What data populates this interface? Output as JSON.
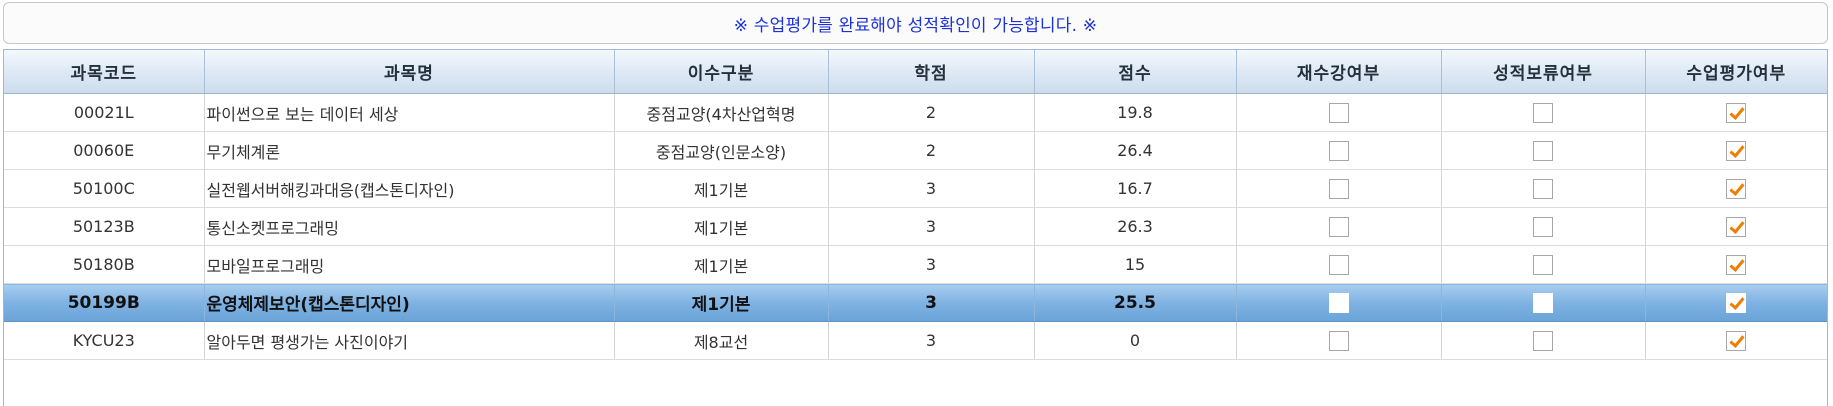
{
  "notice": "※ 수업평가를 완료해야 성적확인이 가능합니다. ※",
  "columns": [
    "과목코드",
    "과목명",
    "이수구분",
    "학점",
    "점수",
    "재수강여부",
    "성적보류여부",
    "수업평가여부"
  ],
  "rows": [
    {
      "code": "00021L",
      "name": "파이썬으로 보는 데이터 세상",
      "category": "중점교양(4차산업혁명",
      "credit": "2",
      "score": "19.8",
      "retake": false,
      "withheld": false,
      "evaluated": true
    },
    {
      "code": "00060E",
      "name": "무기체계론",
      "category": "중점교양(인문소양)",
      "credit": "2",
      "score": "26.4",
      "retake": false,
      "withheld": false,
      "evaluated": true
    },
    {
      "code": "50100C",
      "name": "실전웹서버해킹과대응(캡스톤디자인)",
      "category": "제1기본",
      "credit": "3",
      "score": "16.7",
      "retake": false,
      "withheld": false,
      "evaluated": true
    },
    {
      "code": "50123B",
      "name": "통신소켓프로그래밍",
      "category": "제1기본",
      "credit": "3",
      "score": "26.3",
      "retake": false,
      "withheld": false,
      "evaluated": true
    },
    {
      "code": "50180B",
      "name": "모바일프로그래밍",
      "category": "제1기본",
      "credit": "3",
      "score": "15",
      "retake": false,
      "withheld": false,
      "evaluated": true
    },
    {
      "code": "50199B",
      "name": "운영체제보안(캡스톤디자인)",
      "category": "제1기본",
      "credit": "3",
      "score": "25.5",
      "retake": false,
      "withheld": false,
      "evaluated": true,
      "selected": true
    },
    {
      "code": "KYCU23",
      "name": "알아두면 평생가는 사진이야기",
      "category": "제8교선",
      "credit": "3",
      "score": "0",
      "retake": false,
      "withheld": false,
      "evaluated": true
    }
  ]
}
